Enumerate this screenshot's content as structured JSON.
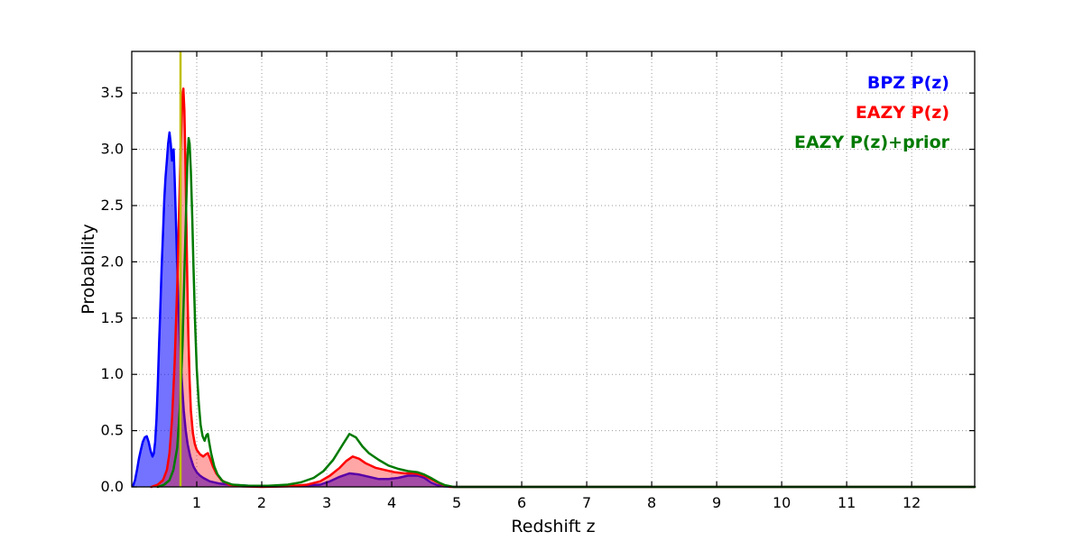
{
  "chart_data": {
    "type": "line",
    "title": "",
    "xlabel": "Redshift z",
    "ylabel": "Probability",
    "xlim": [
      0,
      12.97
    ],
    "ylim": [
      0,
      3.87
    ],
    "xticks": [
      1,
      2,
      3,
      4,
      5,
      6,
      7,
      8,
      9,
      10,
      11,
      12
    ],
    "yticks": [
      0.0,
      0.5,
      1.0,
      1.5,
      2.0,
      2.5,
      3.0,
      3.5
    ],
    "grid": true,
    "grid_color": "#999999",
    "frame_color": "#000000",
    "legend_position": "top-right",
    "vline": {
      "x": 0.75,
      "color": "#bfbf00",
      "label": "marker-line"
    },
    "series": [
      {
        "name": "BPZ P(z)",
        "color": "#0000ff",
        "fill": true,
        "fill_opacity": 0.55,
        "points": [
          [
            0.02,
            0.01
          ],
          [
            0.05,
            0.06
          ],
          [
            0.08,
            0.15
          ],
          [
            0.11,
            0.25
          ],
          [
            0.14,
            0.33
          ],
          [
            0.17,
            0.4
          ],
          [
            0.2,
            0.44
          ],
          [
            0.23,
            0.45
          ],
          [
            0.26,
            0.4
          ],
          [
            0.29,
            0.32
          ],
          [
            0.32,
            0.27
          ],
          [
            0.34,
            0.3
          ],
          [
            0.36,
            0.4
          ],
          [
            0.38,
            0.6
          ],
          [
            0.4,
            0.9
          ],
          [
            0.42,
            1.25
          ],
          [
            0.44,
            1.6
          ],
          [
            0.46,
            1.95
          ],
          [
            0.48,
            2.25
          ],
          [
            0.5,
            2.55
          ],
          [
            0.52,
            2.75
          ],
          [
            0.54,
            2.9
          ],
          [
            0.56,
            3.05
          ],
          [
            0.58,
            3.15
          ],
          [
            0.6,
            3.05
          ],
          [
            0.62,
            2.9
          ],
          [
            0.63,
            2.95
          ],
          [
            0.645,
            3.0
          ],
          [
            0.66,
            2.75
          ],
          [
            0.68,
            2.35
          ],
          [
            0.7,
            1.95
          ],
          [
            0.72,
            1.6
          ],
          [
            0.74,
            1.3
          ],
          [
            0.76,
            1.05
          ],
          [
            0.78,
            0.85
          ],
          [
            0.8,
            0.68
          ],
          [
            0.83,
            0.5
          ],
          [
            0.86,
            0.38
          ],
          [
            0.9,
            0.27
          ],
          [
            0.95,
            0.18
          ],
          [
            1.0,
            0.13
          ],
          [
            1.05,
            0.1
          ],
          [
            1.1,
            0.08
          ],
          [
            1.2,
            0.05
          ],
          [
            1.35,
            0.03
          ],
          [
            1.5,
            0.02
          ],
          [
            1.8,
            0.01
          ],
          [
            2.2,
            0.005
          ],
          [
            2.6,
            0.01
          ],
          [
            2.9,
            0.02
          ],
          [
            3.05,
            0.05
          ],
          [
            3.2,
            0.09
          ],
          [
            3.35,
            0.12
          ],
          [
            3.5,
            0.11
          ],
          [
            3.65,
            0.09
          ],
          [
            3.8,
            0.07
          ],
          [
            3.95,
            0.07
          ],
          [
            4.1,
            0.08
          ],
          [
            4.25,
            0.1
          ],
          [
            4.4,
            0.1
          ],
          [
            4.5,
            0.08
          ],
          [
            4.6,
            0.04
          ],
          [
            4.7,
            0.015
          ],
          [
            4.8,
            0.005
          ],
          [
            5.0,
            0.0
          ],
          [
            12.97,
            0.0
          ]
        ]
      },
      {
        "name": "EAZY P(z)",
        "color": "#ff0000",
        "fill": true,
        "fill_opacity": 0.35,
        "points": [
          [
            0.3,
            0.0
          ],
          [
            0.4,
            0.02
          ],
          [
            0.48,
            0.06
          ],
          [
            0.54,
            0.15
          ],
          [
            0.58,
            0.3
          ],
          [
            0.62,
            0.6
          ],
          [
            0.66,
            1.1
          ],
          [
            0.7,
            1.8
          ],
          [
            0.73,
            2.5
          ],
          [
            0.75,
            2.95
          ],
          [
            0.77,
            3.3
          ],
          [
            0.785,
            3.5
          ],
          [
            0.795,
            3.54
          ],
          [
            0.81,
            3.35
          ],
          [
            0.825,
            2.9
          ],
          [
            0.84,
            2.35
          ],
          [
            0.855,
            1.8
          ],
          [
            0.87,
            1.35
          ],
          [
            0.89,
            0.95
          ],
          [
            0.91,
            0.68
          ],
          [
            0.94,
            0.48
          ],
          [
            0.97,
            0.38
          ],
          [
            1.0,
            0.33
          ],
          [
            1.05,
            0.29
          ],
          [
            1.1,
            0.27
          ],
          [
            1.14,
            0.29
          ],
          [
            1.17,
            0.3
          ],
          [
            1.2,
            0.26
          ],
          [
            1.25,
            0.18
          ],
          [
            1.3,
            0.12
          ],
          [
            1.38,
            0.06
          ],
          [
            1.5,
            0.02
          ],
          [
            1.7,
            0.005
          ],
          [
            2.0,
            0.0
          ],
          [
            2.4,
            0.005
          ],
          [
            2.7,
            0.02
          ],
          [
            2.9,
            0.05
          ],
          [
            3.05,
            0.1
          ],
          [
            3.2,
            0.17
          ],
          [
            3.3,
            0.23
          ],
          [
            3.4,
            0.27
          ],
          [
            3.5,
            0.25
          ],
          [
            3.6,
            0.21
          ],
          [
            3.75,
            0.17
          ],
          [
            3.9,
            0.15
          ],
          [
            4.05,
            0.13
          ],
          [
            4.2,
            0.12
          ],
          [
            4.35,
            0.12
          ],
          [
            4.5,
            0.1
          ],
          [
            4.6,
            0.07
          ],
          [
            4.7,
            0.04
          ],
          [
            4.8,
            0.015
          ],
          [
            4.9,
            0.0
          ],
          [
            12.97,
            0.0
          ]
        ]
      },
      {
        "name": "EAZY P(z)+prior",
        "color": "#007a00",
        "fill": false,
        "fill_opacity": 0,
        "points": [
          [
            0.4,
            0.0
          ],
          [
            0.5,
            0.02
          ],
          [
            0.58,
            0.06
          ],
          [
            0.64,
            0.15
          ],
          [
            0.7,
            0.35
          ],
          [
            0.74,
            0.7
          ],
          [
            0.78,
            1.25
          ],
          [
            0.81,
            1.9
          ],
          [
            0.84,
            2.55
          ],
          [
            0.86,
            2.95
          ],
          [
            0.875,
            3.1
          ],
          [
            0.89,
            3.05
          ],
          [
            0.91,
            2.8
          ],
          [
            0.93,
            2.4
          ],
          [
            0.95,
            1.95
          ],
          [
            0.975,
            1.45
          ],
          [
            1.0,
            1.05
          ],
          [
            1.03,
            0.75
          ],
          [
            1.06,
            0.55
          ],
          [
            1.09,
            0.45
          ],
          [
            1.12,
            0.41
          ],
          [
            1.15,
            0.46
          ],
          [
            1.17,
            0.47
          ],
          [
            1.19,
            0.4
          ],
          [
            1.22,
            0.3
          ],
          [
            1.27,
            0.18
          ],
          [
            1.32,
            0.11
          ],
          [
            1.4,
            0.05
          ],
          [
            1.55,
            0.02
          ],
          [
            1.8,
            0.01
          ],
          [
            2.1,
            0.01
          ],
          [
            2.4,
            0.02
          ],
          [
            2.6,
            0.04
          ],
          [
            2.8,
            0.08
          ],
          [
            2.95,
            0.14
          ],
          [
            3.1,
            0.24
          ],
          [
            3.25,
            0.38
          ],
          [
            3.35,
            0.47
          ],
          [
            3.45,
            0.44
          ],
          [
            3.55,
            0.36
          ],
          [
            3.65,
            0.3
          ],
          [
            3.8,
            0.24
          ],
          [
            3.95,
            0.19
          ],
          [
            4.1,
            0.16
          ],
          [
            4.25,
            0.14
          ],
          [
            4.4,
            0.13
          ],
          [
            4.5,
            0.11
          ],
          [
            4.6,
            0.08
          ],
          [
            4.72,
            0.04
          ],
          [
            4.82,
            0.015
          ],
          [
            4.95,
            0.0
          ],
          [
            12.97,
            0.0
          ]
        ]
      }
    ],
    "legend": [
      {
        "label": "BPZ P(z)",
        "color": "#0000ff"
      },
      {
        "label": "EAZY P(z)",
        "color": "#ff0000"
      },
      {
        "label": "EAZY P(z)+prior",
        "color": "#007a00"
      }
    ]
  }
}
